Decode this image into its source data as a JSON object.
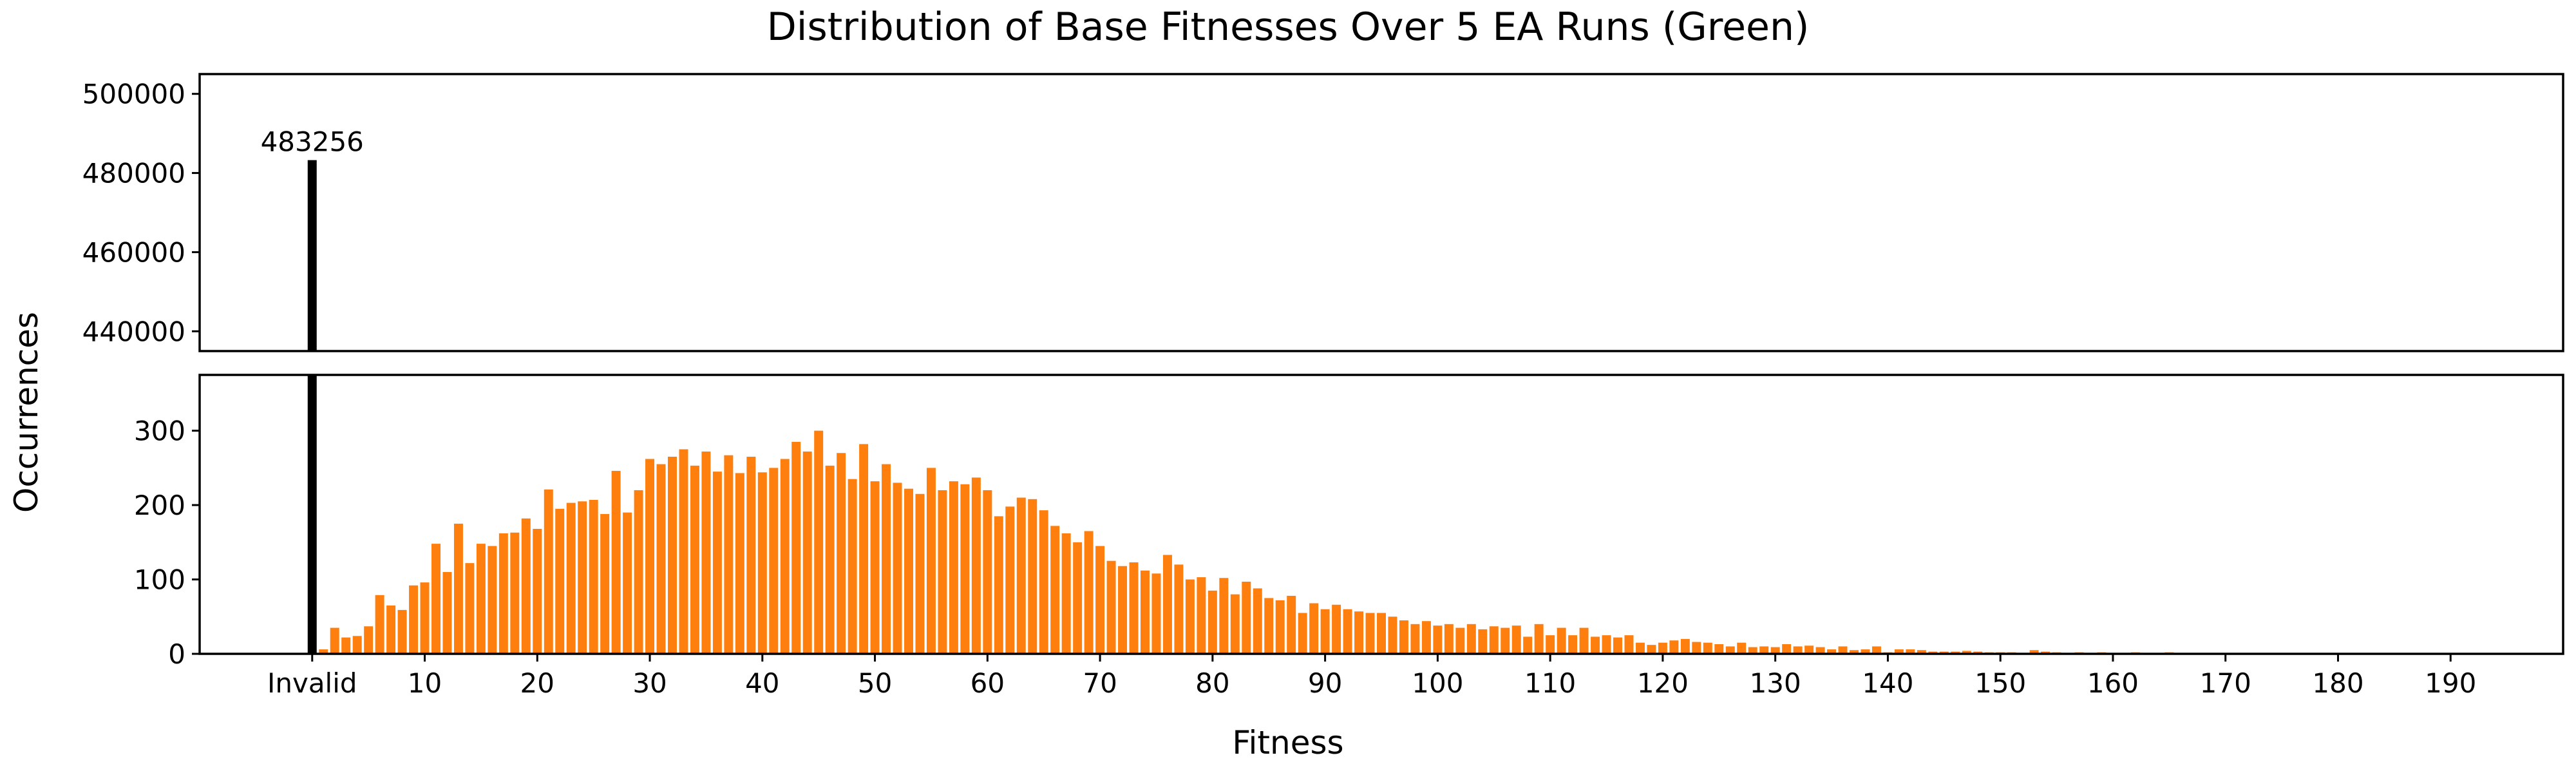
{
  "chart_data": {
    "type": "bar",
    "title": "Distribution of Base Fitnesses Over 5 EA Runs (Green)",
    "xlabel": "Fitness",
    "ylabel": "Occurrences",
    "broken_y_axis": true,
    "panels": [
      {
        "role": "top",
        "ylim": [
          435000,
          505000
        ],
        "yticks": [
          440000,
          460000,
          480000,
          500000
        ]
      },
      {
        "role": "bottom",
        "ylim": [
          0,
          375
        ],
        "yticks": [
          0,
          100,
          200,
          300
        ]
      }
    ],
    "xlim": [
      -10,
      200
    ],
    "xticks": [
      {
        "value": 0,
        "label": "Invalid"
      },
      {
        "value": 10,
        "label": "10"
      },
      {
        "value": 20,
        "label": "20"
      },
      {
        "value": 30,
        "label": "30"
      },
      {
        "value": 40,
        "label": "40"
      },
      {
        "value": 50,
        "label": "50"
      },
      {
        "value": 60,
        "label": "60"
      },
      {
        "value": 70,
        "label": "70"
      },
      {
        "value": 80,
        "label": "80"
      },
      {
        "value": 90,
        "label": "90"
      },
      {
        "value": 100,
        "label": "100"
      },
      {
        "value": 110,
        "label": "110"
      },
      {
        "value": 120,
        "label": "120"
      },
      {
        "value": 130,
        "label": "130"
      },
      {
        "value": 140,
        "label": "140"
      },
      {
        "value": 150,
        "label": "150"
      },
      {
        "value": 160,
        "label": "160"
      },
      {
        "value": 170,
        "label": "170"
      },
      {
        "value": 180,
        "label": "180"
      },
      {
        "value": 190,
        "label": "190"
      }
    ],
    "invalid": {
      "x": 0,
      "value": 483256,
      "label": "483256",
      "color": "#000000"
    },
    "series_color": "#ff7f0e",
    "x_start": 1,
    "values": [
      6,
      35,
      22,
      24,
      37,
      79,
      65,
      59,
      92,
      96,
      148,
      110,
      175,
      122,
      148,
      145,
      162,
      163,
      182,
      168,
      221,
      195,
      203,
      205,
      207,
      188,
      246,
      190,
      220,
      262,
      255,
      265,
      275,
      253,
      272,
      245,
      267,
      243,
      265,
      244,
      250,
      262,
      285,
      272,
      300,
      253,
      270,
      235,
      282,
      232,
      255,
      230,
      222,
      215,
      250,
      220,
      232,
      228,
      237,
      220,
      185,
      198,
      210,
      208,
      193,
      172,
      162,
      150,
      165,
      145,
      125,
      118,
      123,
      112,
      108,
      133,
      120,
      100,
      103,
      85,
      102,
      80,
      97,
      88,
      75,
      72,
      78,
      55,
      68,
      60,
      66,
      60,
      57,
      55,
      55,
      50,
      45,
      40,
      44,
      38,
      40,
      35,
      40,
      33,
      37,
      35,
      38,
      23,
      40,
      25,
      35,
      25,
      35,
      23,
      25,
      22,
      25,
      15,
      12,
      15,
      18,
      20,
      16,
      15,
      13,
      10,
      15,
      9,
      10,
      9,
      13,
      10,
      11,
      9,
      6,
      10,
      5,
      6,
      10,
      2,
      6,
      6,
      5,
      3,
      3,
      3,
      4,
      3,
      2,
      2,
      2,
      1,
      5,
      3,
      2,
      1,
      2,
      1,
      2,
      1,
      1,
      2,
      1,
      1,
      2,
      1,
      1,
      1,
      1,
      0,
      1,
      1,
      0,
      1,
      1,
      0,
      1,
      0,
      0,
      1,
      0,
      1,
      0,
      0,
      1,
      0,
      0,
      1,
      0,
      0,
      1,
      0,
      0,
      0,
      0,
      0,
      0,
      0,
      0,
      0
    ]
  }
}
